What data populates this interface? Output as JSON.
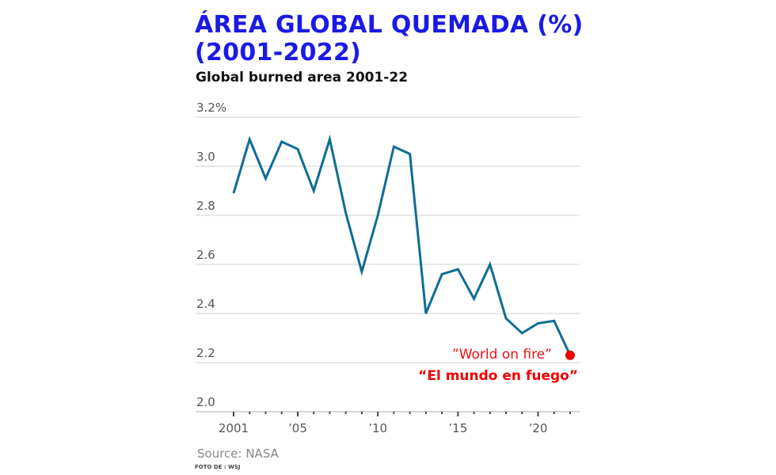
{
  "chart_data": {
    "type": "line",
    "title": "ÁREA GLOBAL QUEMADA (%) (2001-2022)",
    "title_lines": [
      "ÁREA GLOBAL QUEMADA (%)",
      "(2001-2022)"
    ],
    "subtitle": "Global burned area 2001-22",
    "xlabel": "",
    "ylabel": "",
    "x": [
      2001,
      2002,
      2003,
      2004,
      2005,
      2006,
      2007,
      2008,
      2009,
      2010,
      2011,
      2012,
      2013,
      2014,
      2015,
      2016,
      2017,
      2018,
      2019,
      2020,
      2021,
      2022
    ],
    "series": [
      {
        "values": [
          2.89,
          3.11,
          2.95,
          3.1,
          3.07,
          2.9,
          3.11,
          2.81,
          2.57,
          2.8,
          3.08,
          3.05,
          2.4,
          2.56,
          2.58,
          2.46,
          2.6,
          2.38,
          2.32,
          2.36,
          2.37,
          2.23
        ],
        "color": "#0e6d94"
      }
    ],
    "ylim": [
      2.0,
      3.2
    ],
    "xlim": [
      2001,
      2022
    ],
    "y_ticks": [
      {
        "value": 3.2,
        "label": "3.2%"
      },
      {
        "value": 3.0,
        "label": "3.0"
      },
      {
        "value": 2.8,
        "label": "2.8"
      },
      {
        "value": 2.6,
        "label": "2.6"
      },
      {
        "value": 2.4,
        "label": "2.4"
      },
      {
        "value": 2.2,
        "label": "2.2"
      },
      {
        "value": 2.0,
        "label": "2.0"
      }
    ],
    "x_ticks": [
      {
        "value": 2001,
        "label": "2001"
      },
      {
        "value": 2005,
        "label": "’05"
      },
      {
        "value": 2010,
        "label": "’10"
      },
      {
        "value": 2015,
        "label": "’15"
      },
      {
        "value": 2020,
        "label": "’20"
      }
    ],
    "grid": true,
    "highlight": {
      "x": 2022,
      "value": 2.23,
      "color": "#f00000"
    },
    "annotations": [
      "”World on fire”",
      "“El mundo en fuego”"
    ],
    "source": "Source: NASA",
    "credit": "FOTO DE : WSJ"
  }
}
